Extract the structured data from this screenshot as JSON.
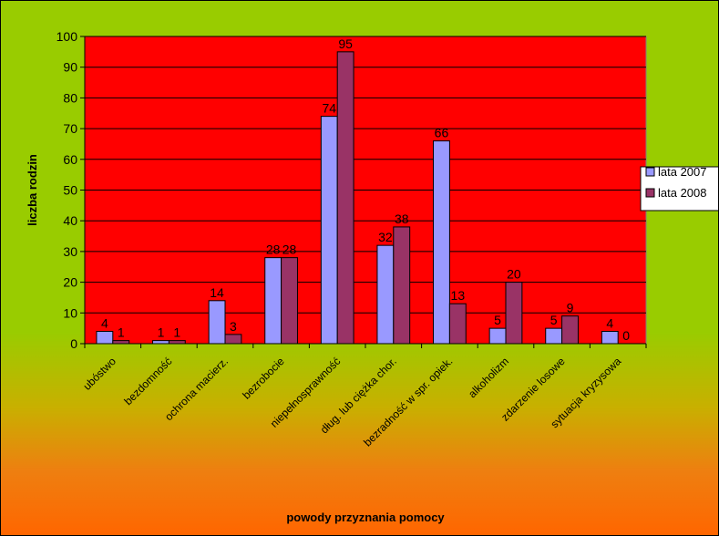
{
  "chart_data": {
    "type": "bar",
    "categories": [
      "ubóstwo",
      "bezdomność",
      "ochrona macierz.",
      "bezrobocie",
      "niepełnosprawność",
      "dług. lub ciężka chor.",
      "bezradność w spr. opiek.",
      "alkoholizm",
      "zdarzenie losowe",
      "sytuacja kryzysowa"
    ],
    "series": [
      {
        "name": "lata 2007",
        "values": [
          4,
          1,
          14,
          28,
          74,
          32,
          66,
          5,
          5,
          4
        ]
      },
      {
        "name": "lata 2008",
        "values": [
          1,
          1,
          3,
          28,
          95,
          38,
          13,
          20,
          9,
          0
        ]
      }
    ],
    "title": "",
    "xlabel": "powody przyznania pomocy",
    "ylabel": "liczba rodzin",
    "ylim": [
      0,
      100
    ],
    "yticks": [
      0,
      10,
      20,
      30,
      40,
      50,
      60,
      70,
      80,
      90,
      100
    ],
    "grid": true,
    "legend": "right",
    "colors": {
      "plot_background": "#ff0000",
      "series_2007": "#9999ff",
      "series_2008": "#993366",
      "chart_background_top": "#99cc00",
      "chart_background_bottom": "#ff6600"
    }
  }
}
